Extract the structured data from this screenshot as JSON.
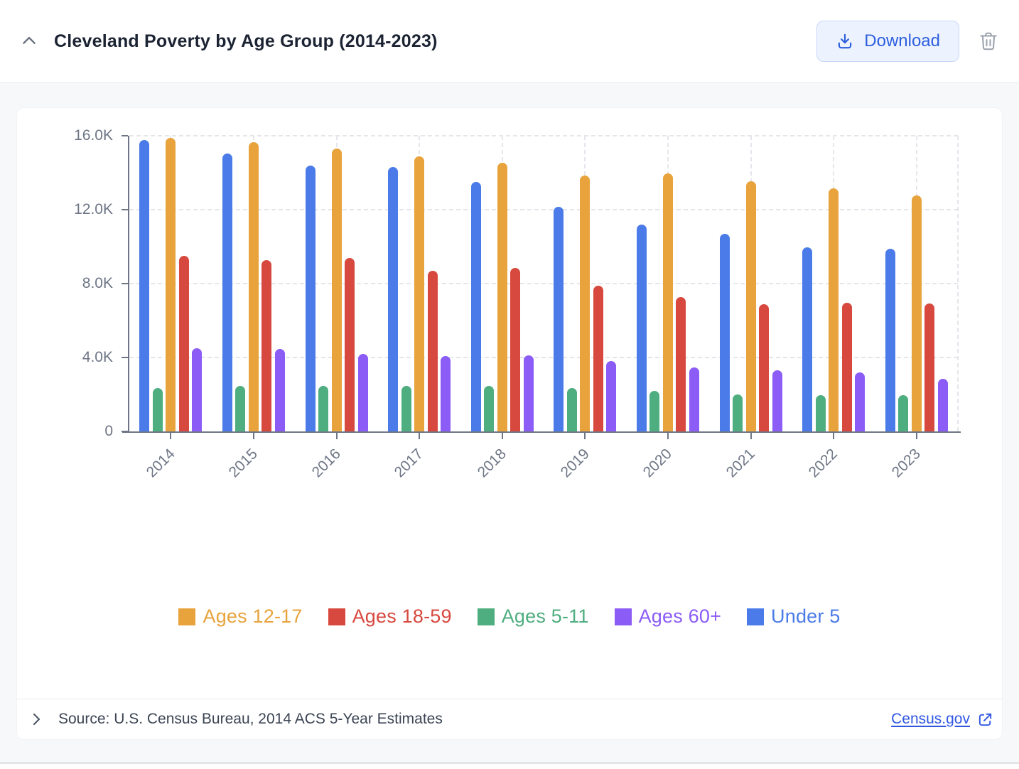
{
  "header": {
    "title": "Cleveland Poverty by Age Group (2014-2023)",
    "download_label": "Download"
  },
  "footer": {
    "source": "Source: U.S. Census Bureau, 2014 ACS 5-Year Estimates",
    "link_label": "Census.gov"
  },
  "colors": {
    "accent_button_text": "#2d5fde",
    "accent_button_bg": "#edf3fe",
    "accent_button_border": "#c6d7f8",
    "link_blue": "#3157e2",
    "axis_text": "#6e7686",
    "axis_line": "#6e7686",
    "gridline": "#e4e6eb",
    "title_text": "#1c2433"
  },
  "chart_data": {
    "type": "bar",
    "categories": [
      "2014",
      "2015",
      "2016",
      "2017",
      "2018",
      "2019",
      "2020",
      "2021",
      "2022",
      "2023"
    ],
    "series": [
      {
        "name": "Under 5",
        "color": "#4a7be8",
        "values": [
          15750,
          15050,
          14400,
          14300,
          13500,
          12150,
          11200,
          10700,
          9950,
          9900
        ]
      },
      {
        "name": "Ages 5-11",
        "color": "#4fae7f",
        "values": [
          2350,
          2450,
          2480,
          2480,
          2470,
          2350,
          2180,
          2000,
          1950,
          1950
        ]
      },
      {
        "name": "Ages 12-17",
        "color": "#e8a33c",
        "values": [
          15900,
          15650,
          15300,
          14900,
          14550,
          13850,
          13950,
          13550,
          13150,
          12750
        ]
      },
      {
        "name": "Ages 18-59",
        "color": "#d7493f",
        "values": [
          9500,
          9250,
          9400,
          8700,
          8850,
          7900,
          7250,
          6900,
          6980,
          6930
        ]
      },
      {
        "name": "Ages 60+",
        "color": "#8b5cf6",
        "values": [
          4500,
          4480,
          4200,
          4080,
          4100,
          3800,
          3450,
          3300,
          3180,
          2850
        ]
      }
    ],
    "legend_order": [
      "Ages 12-17",
      "Ages 18-59",
      "Ages 5-11",
      "Ages 60+",
      "Under 5"
    ],
    "title": "",
    "xlabel": "",
    "ylabel": "",
    "ylim": [
      0,
      16000
    ],
    "ytick_values": [
      0,
      4000,
      8000,
      12000,
      16000
    ],
    "ytick_labels": [
      "0",
      "4.0K",
      "8.0K",
      "12.0K",
      "16.0K"
    ],
    "grid": true,
    "legend_position": "bottom"
  }
}
